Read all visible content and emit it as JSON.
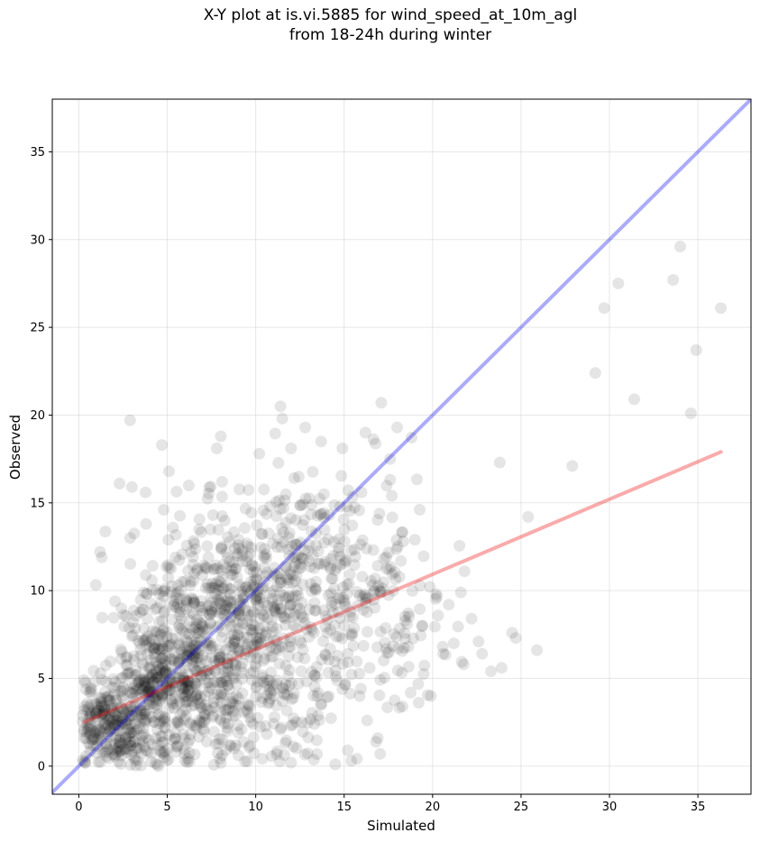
{
  "title": {
    "line1": "X-Y plot at is.vi.5885 for wind_speed_at_10m_agl",
    "line2": "from 18-24h during winter"
  },
  "chart_data": {
    "type": "scatter",
    "xlabel": "Simulated",
    "ylabel": "Observed",
    "xlim": [
      -1.5,
      38
    ],
    "ylim": [
      -1.6,
      38
    ],
    "xticks": [
      0,
      5,
      10,
      15,
      20,
      25,
      30,
      35
    ],
    "yticks": [
      0,
      5,
      10,
      15,
      20,
      25,
      30,
      35
    ],
    "grid": true,
    "colors": {
      "points": "#000000",
      "identity_line": "#0000ee",
      "fit_line": "#ee0000"
    },
    "reference_lines": [
      {
        "kind": "one-to-one",
        "color": "#0000ee",
        "points": [
          [
            -1.5,
            -1.5
          ],
          [
            38,
            38
          ]
        ]
      },
      {
        "kind": "linear-fit",
        "color": "#ee0000",
        "points": [
          [
            0.3,
            2.5
          ],
          [
            36.3,
            17.9
          ]
        ]
      }
    ],
    "outliers": [
      [
        34.0,
        29.6
      ],
      [
        33.6,
        27.7
      ],
      [
        30.5,
        27.5
      ],
      [
        29.7,
        26.1
      ],
      [
        36.3,
        26.1
      ],
      [
        34.9,
        23.7
      ],
      [
        29.2,
        22.4
      ],
      [
        31.4,
        20.9
      ],
      [
        34.6,
        20.1
      ],
      [
        27.9,
        17.1
      ],
      [
        23.8,
        17.3
      ],
      [
        25.4,
        14.2
      ],
      [
        25.9,
        6.6
      ],
      [
        24.7,
        7.3
      ],
      [
        24.5,
        7.6
      ],
      [
        23.9,
        5.6
      ],
      [
        23.3,
        5.4
      ],
      [
        22.8,
        6.4
      ],
      [
        22.6,
        7.1
      ],
      [
        22.2,
        8.4
      ],
      [
        21.8,
        11.1
      ],
      [
        21.6,
        9.9
      ],
      [
        21.2,
        7.0
      ],
      [
        20.6,
        6.4
      ],
      [
        20.2,
        9.8
      ],
      [
        19.9,
        4.0
      ],
      [
        19.4,
        8.0
      ],
      [
        19.0,
        12.9
      ],
      [
        18.3,
        3.4
      ],
      [
        18.0,
        19.3
      ],
      [
        17.6,
        17.5
      ],
      [
        17.1,
        20.7
      ],
      [
        16.9,
        1.6
      ],
      [
        16.3,
        2.6
      ],
      [
        16.2,
        19.0
      ],
      [
        15.2,
        0.9
      ],
      [
        14.9,
        18.1
      ],
      [
        14.5,
        0.1
      ],
      [
        13.7,
        18.5
      ],
      [
        12.8,
        19.3
      ],
      [
        11.4,
        20.5
      ],
      [
        11.5,
        19.8
      ],
      [
        12.0,
        18.1
      ],
      [
        10.2,
        17.8
      ],
      [
        7.8,
        18.1
      ],
      [
        8.1,
        16.2
      ],
      [
        4.7,
        18.3
      ],
      [
        5.1,
        16.8
      ],
      [
        2.9,
        19.7
      ],
      [
        2.3,
        16.1
      ],
      [
        3.0,
        15.9
      ],
      [
        3.8,
        13.8
      ],
      [
        2.9,
        13.0
      ],
      [
        1.2,
        12.2
      ],
      [
        1.3,
        11.9
      ],
      [
        0.3,
        4.9
      ],
      [
        15.4,
        0.3
      ],
      [
        12.0,
        0.2
      ],
      [
        6.0,
        0.3
      ],
      [
        4.5,
        0.0
      ]
    ],
    "point_clusters": [
      {
        "center": [
          2.0,
          2.5
        ],
        "spread": [
          1.2,
          1.4
        ],
        "count": 260
      },
      {
        "center": [
          4.8,
          4.8
        ],
        "spread": [
          1.5,
          2.2
        ],
        "count": 300
      },
      {
        "center": [
          6.8,
          7.2
        ],
        "spread": [
          2.0,
          2.8
        ],
        "count": 320
      },
      {
        "center": [
          9.5,
          9.5
        ],
        "spread": [
          2.3,
          3.0
        ],
        "count": 260
      },
      {
        "center": [
          12.5,
          11.0
        ],
        "spread": [
          2.3,
          3.2
        ],
        "count": 200
      },
      {
        "center": [
          9.5,
          3.5
        ],
        "spread": [
          3.0,
          2.0
        ],
        "count": 180
      },
      {
        "center": [
          15.5,
          10.0
        ],
        "spread": [
          2.2,
          3.5
        ],
        "count": 110
      },
      {
        "center": [
          18.5,
          8.0
        ],
        "spread": [
          1.8,
          2.5
        ],
        "count": 60
      }
    ]
  }
}
